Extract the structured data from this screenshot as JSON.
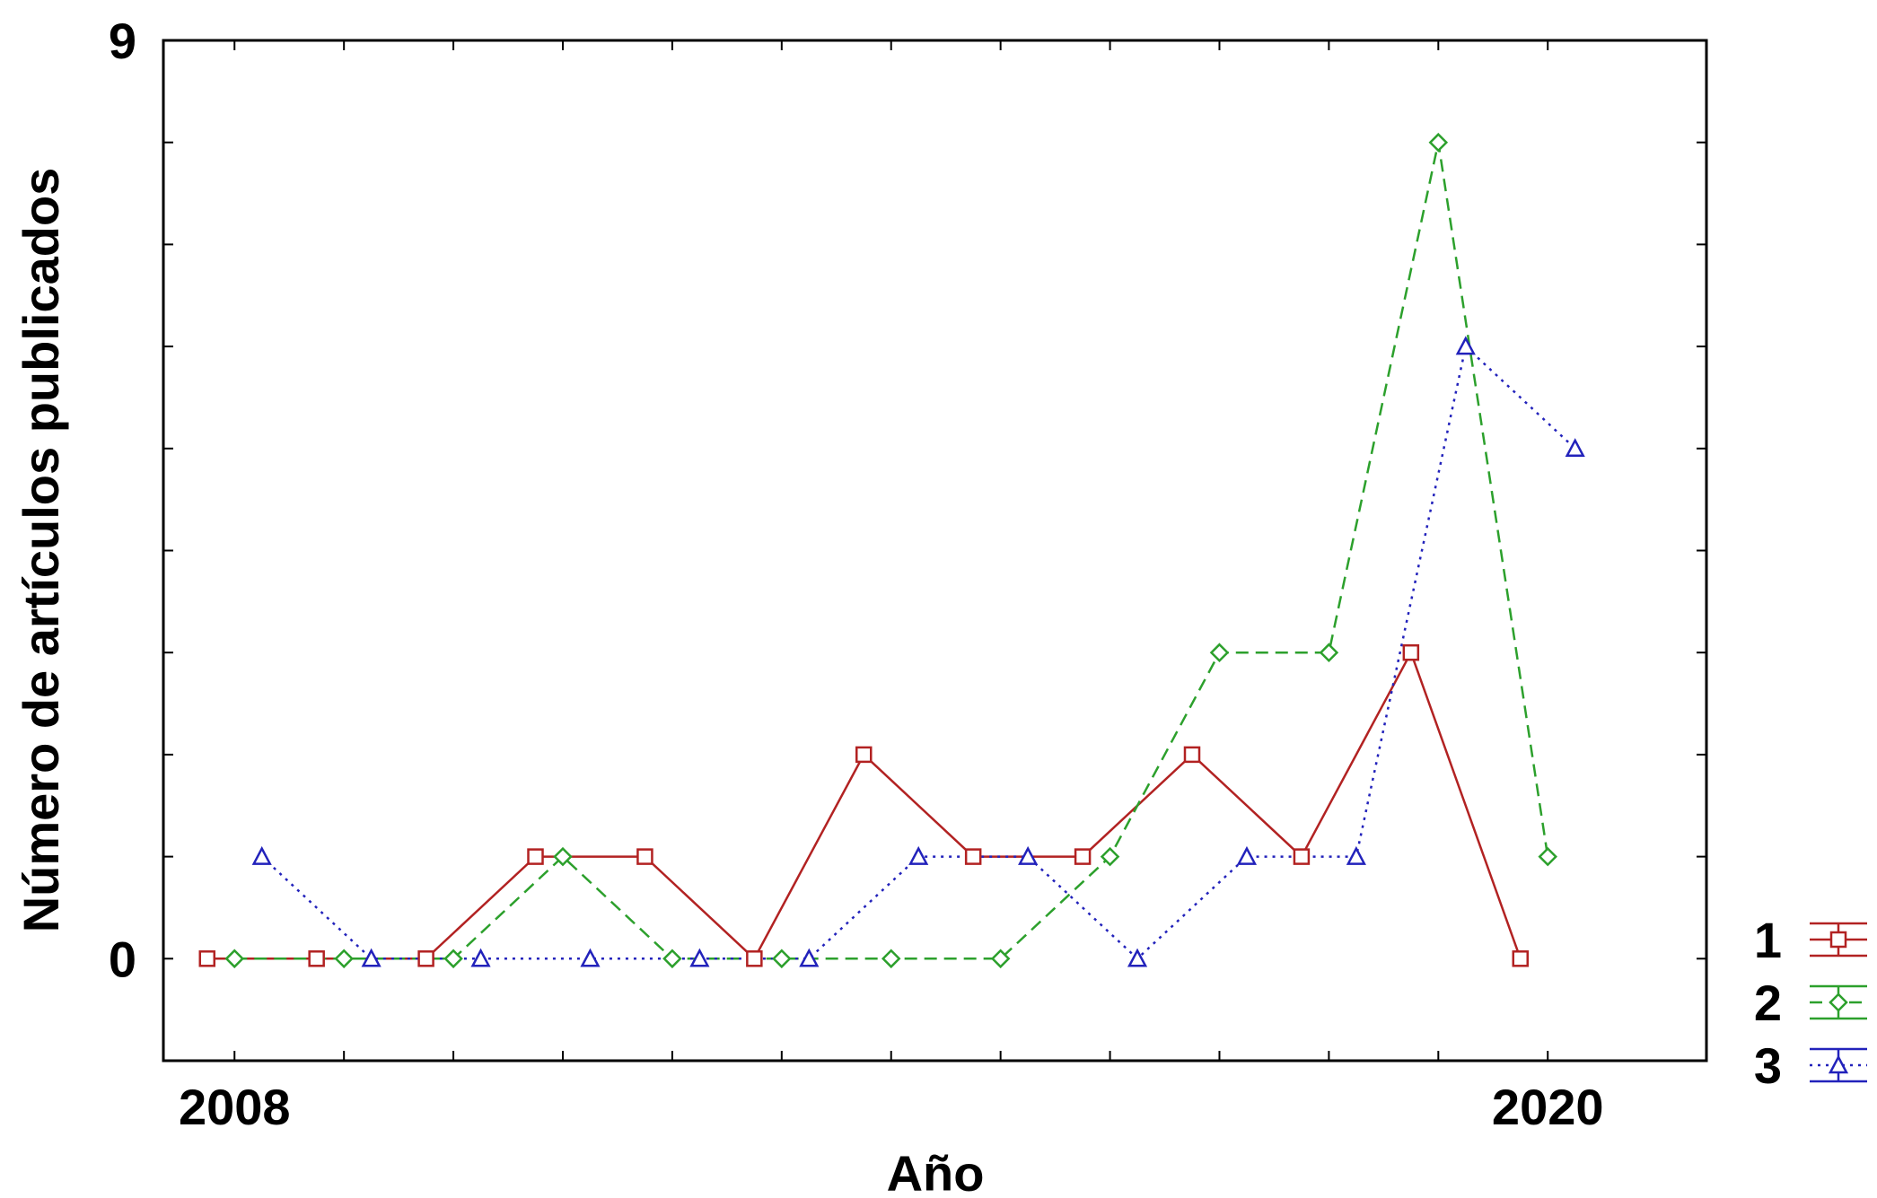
{
  "chart_data": {
    "type": "line",
    "title": "",
    "xlabel": "Año",
    "ylabel": "Número de artículos publicados",
    "xlim": [
      2007.35,
      2021.45
    ],
    "ylim": [
      -1,
      9
    ],
    "x_tick_labels": [
      {
        "value": 2008,
        "text": "2008"
      },
      {
        "value": 2020,
        "text": "2020"
      }
    ],
    "y_tick_labels": [
      {
        "value": 0,
        "text": "0"
      },
      {
        "value": 9,
        "text": "9"
      }
    ],
    "minor_x_ticks": [
      2008,
      2009,
      2010,
      2011,
      2012,
      2013,
      2014,
      2015,
      2016,
      2017,
      2018,
      2019,
      2020
    ],
    "minor_y_ticks": [
      -1,
      0,
      1,
      2,
      3,
      4,
      5,
      6,
      7,
      8,
      9
    ],
    "grid": false,
    "legend_position": "bottom-right",
    "series": [
      {
        "name": "1",
        "color": "#b22222",
        "line_style": "solid",
        "marker": "square",
        "x": [
          2007.75,
          2008.75,
          2009.75,
          2010.75,
          2011.75,
          2012.75,
          2013.75,
          2014.75,
          2015.75,
          2016.75,
          2017.75,
          2018.75,
          2019.75
        ],
        "y": [
          0,
          0,
          0,
          1,
          1,
          0,
          2,
          1,
          1,
          2,
          1,
          3,
          0
        ]
      },
      {
        "name": "2",
        "color": "#2ca02c",
        "line_style": "dashed",
        "marker": "diamond",
        "x": [
          2008.0,
          2009.0,
          2010.0,
          2011.0,
          2012.0,
          2013.0,
          2014.0,
          2015.0,
          2016.0,
          2017.0,
          2018.0,
          2019.0,
          2020.0
        ],
        "y": [
          0,
          0,
          0,
          1,
          0,
          0,
          0,
          0,
          1,
          3,
          3,
          8,
          1
        ]
      },
      {
        "name": "3",
        "color": "#2222bb",
        "line_style": "dotted",
        "marker": "triangle",
        "x": [
          2008.25,
          2009.25,
          2010.25,
          2011.25,
          2012.25,
          2013.25,
          2014.25,
          2015.25,
          2016.25,
          2017.25,
          2018.25,
          2019.25,
          2020.25
        ],
        "y": [
          1,
          0,
          0,
          0,
          0,
          0,
          1,
          1,
          0,
          1,
          1,
          6,
          5
        ]
      }
    ]
  }
}
